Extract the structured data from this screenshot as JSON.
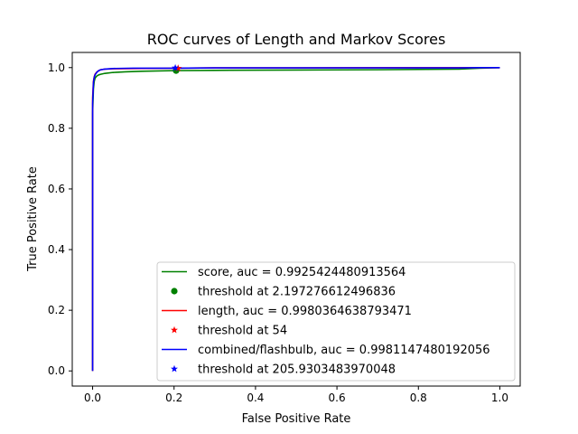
{
  "chart_data": {
    "type": "line",
    "title": "ROC curves of Length and Markov Scores",
    "xlabel": "False Positive Rate",
    "ylabel": "True Positive Rate",
    "xlim": [
      -0.05,
      1.05
    ],
    "ylim": [
      -0.05,
      1.05
    ],
    "xticks": [
      "0.0",
      "0.2",
      "0.4",
      "0.6",
      "0.8",
      "1.0"
    ],
    "yticks": [
      "0.0",
      "0.2",
      "0.4",
      "0.6",
      "0.8",
      "1.0"
    ],
    "grid": false,
    "legend_position": "lower-right",
    "series": [
      {
        "name": "score, auc = 0.9925424480913564",
        "color": "#008000",
        "x": [
          0,
          0,
          0.002,
          0.004,
          0.006,
          0.01,
          0.015,
          0.02,
          0.03,
          0.05,
          0.08,
          0.12,
          0.2,
          0.3,
          0.5,
          0.7,
          0.9,
          0.95,
          1.0
        ],
        "y": [
          0,
          0.85,
          0.93,
          0.955,
          0.965,
          0.972,
          0.976,
          0.978,
          0.981,
          0.984,
          0.986,
          0.988,
          0.99,
          0.991,
          0.992,
          0.993,
          0.995,
          0.998,
          1.0
        ]
      },
      {
        "name": "length, auc = 0.9980364638793471",
        "color": "#ff0000",
        "x": [
          0,
          0,
          0.002,
          0.004,
          0.006,
          0.01,
          0.015,
          0.02,
          0.03,
          0.05,
          0.1,
          0.2,
          0.3,
          0.5,
          0.8,
          1.0
        ],
        "y": [
          0,
          0.9,
          0.955,
          0.97,
          0.978,
          0.985,
          0.99,
          0.993,
          0.995,
          0.996,
          0.997,
          0.998,
          0.999,
          0.999,
          1.0,
          1.0
        ]
      },
      {
        "name": "combined/flashbulb, auc = 0.9981147480192056",
        "color": "#0000ff",
        "x": [
          0,
          0,
          0.002,
          0.004,
          0.006,
          0.01,
          0.015,
          0.02,
          0.03,
          0.05,
          0.1,
          0.2,
          0.3,
          0.5,
          0.8,
          0.9,
          0.95,
          1.0
        ],
        "y": [
          0,
          0.88,
          0.95,
          0.968,
          0.976,
          0.984,
          0.99,
          0.993,
          0.995,
          0.997,
          0.998,
          0.998,
          0.999,
          0.999,
          0.999,
          0.999,
          1.0,
          1.0
        ]
      }
    ],
    "markers": [
      {
        "name": "threshold at 2.197276612496836",
        "color": "#008000",
        "shape": "circle",
        "x": 0.205,
        "y": 0.99
      },
      {
        "name": "threshold at 54",
        "color": "#ff0000",
        "shape": "star",
        "x": 0.21,
        "y": 0.998
      },
      {
        "name": "threshold at 205.9303483970048",
        "color": "#0000ff",
        "shape": "star",
        "x": 0.203,
        "y": 0.999
      }
    ],
    "legend": [
      {
        "label": "score, auc = 0.9925424480913564",
        "color": "#008000",
        "kind": "line"
      },
      {
        "label": "threshold at 2.197276612496836",
        "color": "#008000",
        "kind": "circle"
      },
      {
        "label": "length, auc = 0.9980364638793471",
        "color": "#ff0000",
        "kind": "line"
      },
      {
        "label": "threshold at 54",
        "color": "#ff0000",
        "kind": "star"
      },
      {
        "label": "combined/flashbulb, auc = 0.9981147480192056",
        "color": "#0000ff",
        "kind": "line"
      },
      {
        "label": "threshold at 205.9303483970048",
        "color": "#0000ff",
        "kind": "star"
      }
    ]
  }
}
